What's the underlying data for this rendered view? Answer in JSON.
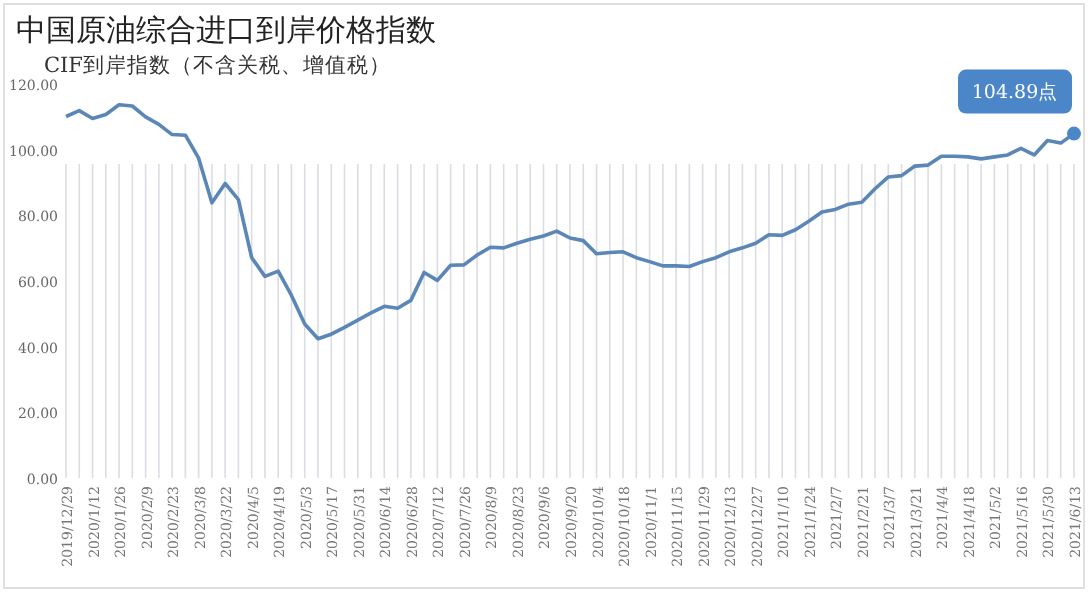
{
  "chart_data": {
    "type": "line",
    "title": "中国原油综合进口到岸价格指数",
    "subtitle": "CIF到岸指数（不含关税、增值税）",
    "categories": [
      "2019/12/29",
      null,
      "2020/1/12",
      null,
      "2020/1/26",
      null,
      "2020/2/9",
      null,
      "2020/2/23",
      null,
      "2020/3/8",
      null,
      "2020/3/22",
      null,
      "2020/4/5",
      null,
      "2020/4/19",
      null,
      "2020/5/3",
      null,
      "2020/5/17",
      null,
      "2020/5/31",
      null,
      "2020/6/14",
      null,
      "2020/6/28",
      null,
      "2020/7/12",
      null,
      "2020/7/26",
      null,
      "2020/8/9",
      null,
      "2020/8/23",
      null,
      "2020/9/6",
      null,
      "2020/9/20",
      null,
      "2020/10/4",
      null,
      "2020/10/18",
      null,
      "2020/11/1",
      null,
      "2020/11/15",
      null,
      "2020/11/29",
      null,
      "2020/12/13",
      null,
      "2020/12/27",
      null,
      "2021/1/10",
      null,
      "2021/1/24",
      null,
      "2021/2/7",
      null,
      "2021/2/21",
      null,
      "2021/3/7",
      null,
      "2021/3/21",
      null,
      "2021/4/4",
      null,
      "2021/4/18",
      null,
      "2021/5/2",
      null,
      "2021/5/16",
      null,
      "2021/5/30",
      null,
      "2021/6/13"
    ],
    "series": [
      {
        "color": "#5b86b8",
        "values": [
          110.1,
          111.9,
          109.5,
          110.7,
          113.7,
          113.3,
          110,
          107.7,
          104.6,
          104.4,
          97.4,
          83.8,
          89.7,
          84.8,
          67.1,
          61.4,
          63,
          55.6,
          46.9,
          42.4,
          43.8,
          45.9,
          48.1,
          50.3,
          52.3,
          51.7,
          54.1,
          62.6,
          60.2,
          64.8,
          64.9,
          67.9,
          70.3,
          70.1,
          71.5,
          72.7,
          73.7,
          75.2,
          73.1,
          72.3,
          68.3,
          68.7,
          68.9,
          67.1,
          65.9,
          64.6,
          64.6,
          64.4,
          65.9,
          67.1,
          68.9,
          70.1,
          71.5,
          74.1,
          73.9,
          75.6,
          78.2,
          81,
          81.8,
          83.4,
          84,
          88.1,
          91.7,
          92.1,
          95,
          95.3,
          98,
          98,
          97.8,
          97.2,
          97.8,
          98.4,
          100.4,
          98.4,
          102.8,
          102,
          104.89
        ]
      }
    ],
    "ylim": [
      0,
      120
    ],
    "yticks": [
      {
        "value": 0,
        "label": "0.00"
      },
      {
        "value": 20,
        "label": "20.00"
      },
      {
        "value": 40,
        "label": "40.00"
      },
      {
        "value": 60,
        "label": "60.00"
      },
      {
        "value": 80,
        "label": "80.00"
      },
      {
        "value": 100,
        "label": "100.00"
      },
      {
        "value": 120,
        "label": "120.00"
      }
    ],
    "grid": "x",
    "marker": "none",
    "annotations": [
      {
        "text": "104.89点",
        "x": "2021/6/13",
        "y": 104.89
      }
    ]
  }
}
